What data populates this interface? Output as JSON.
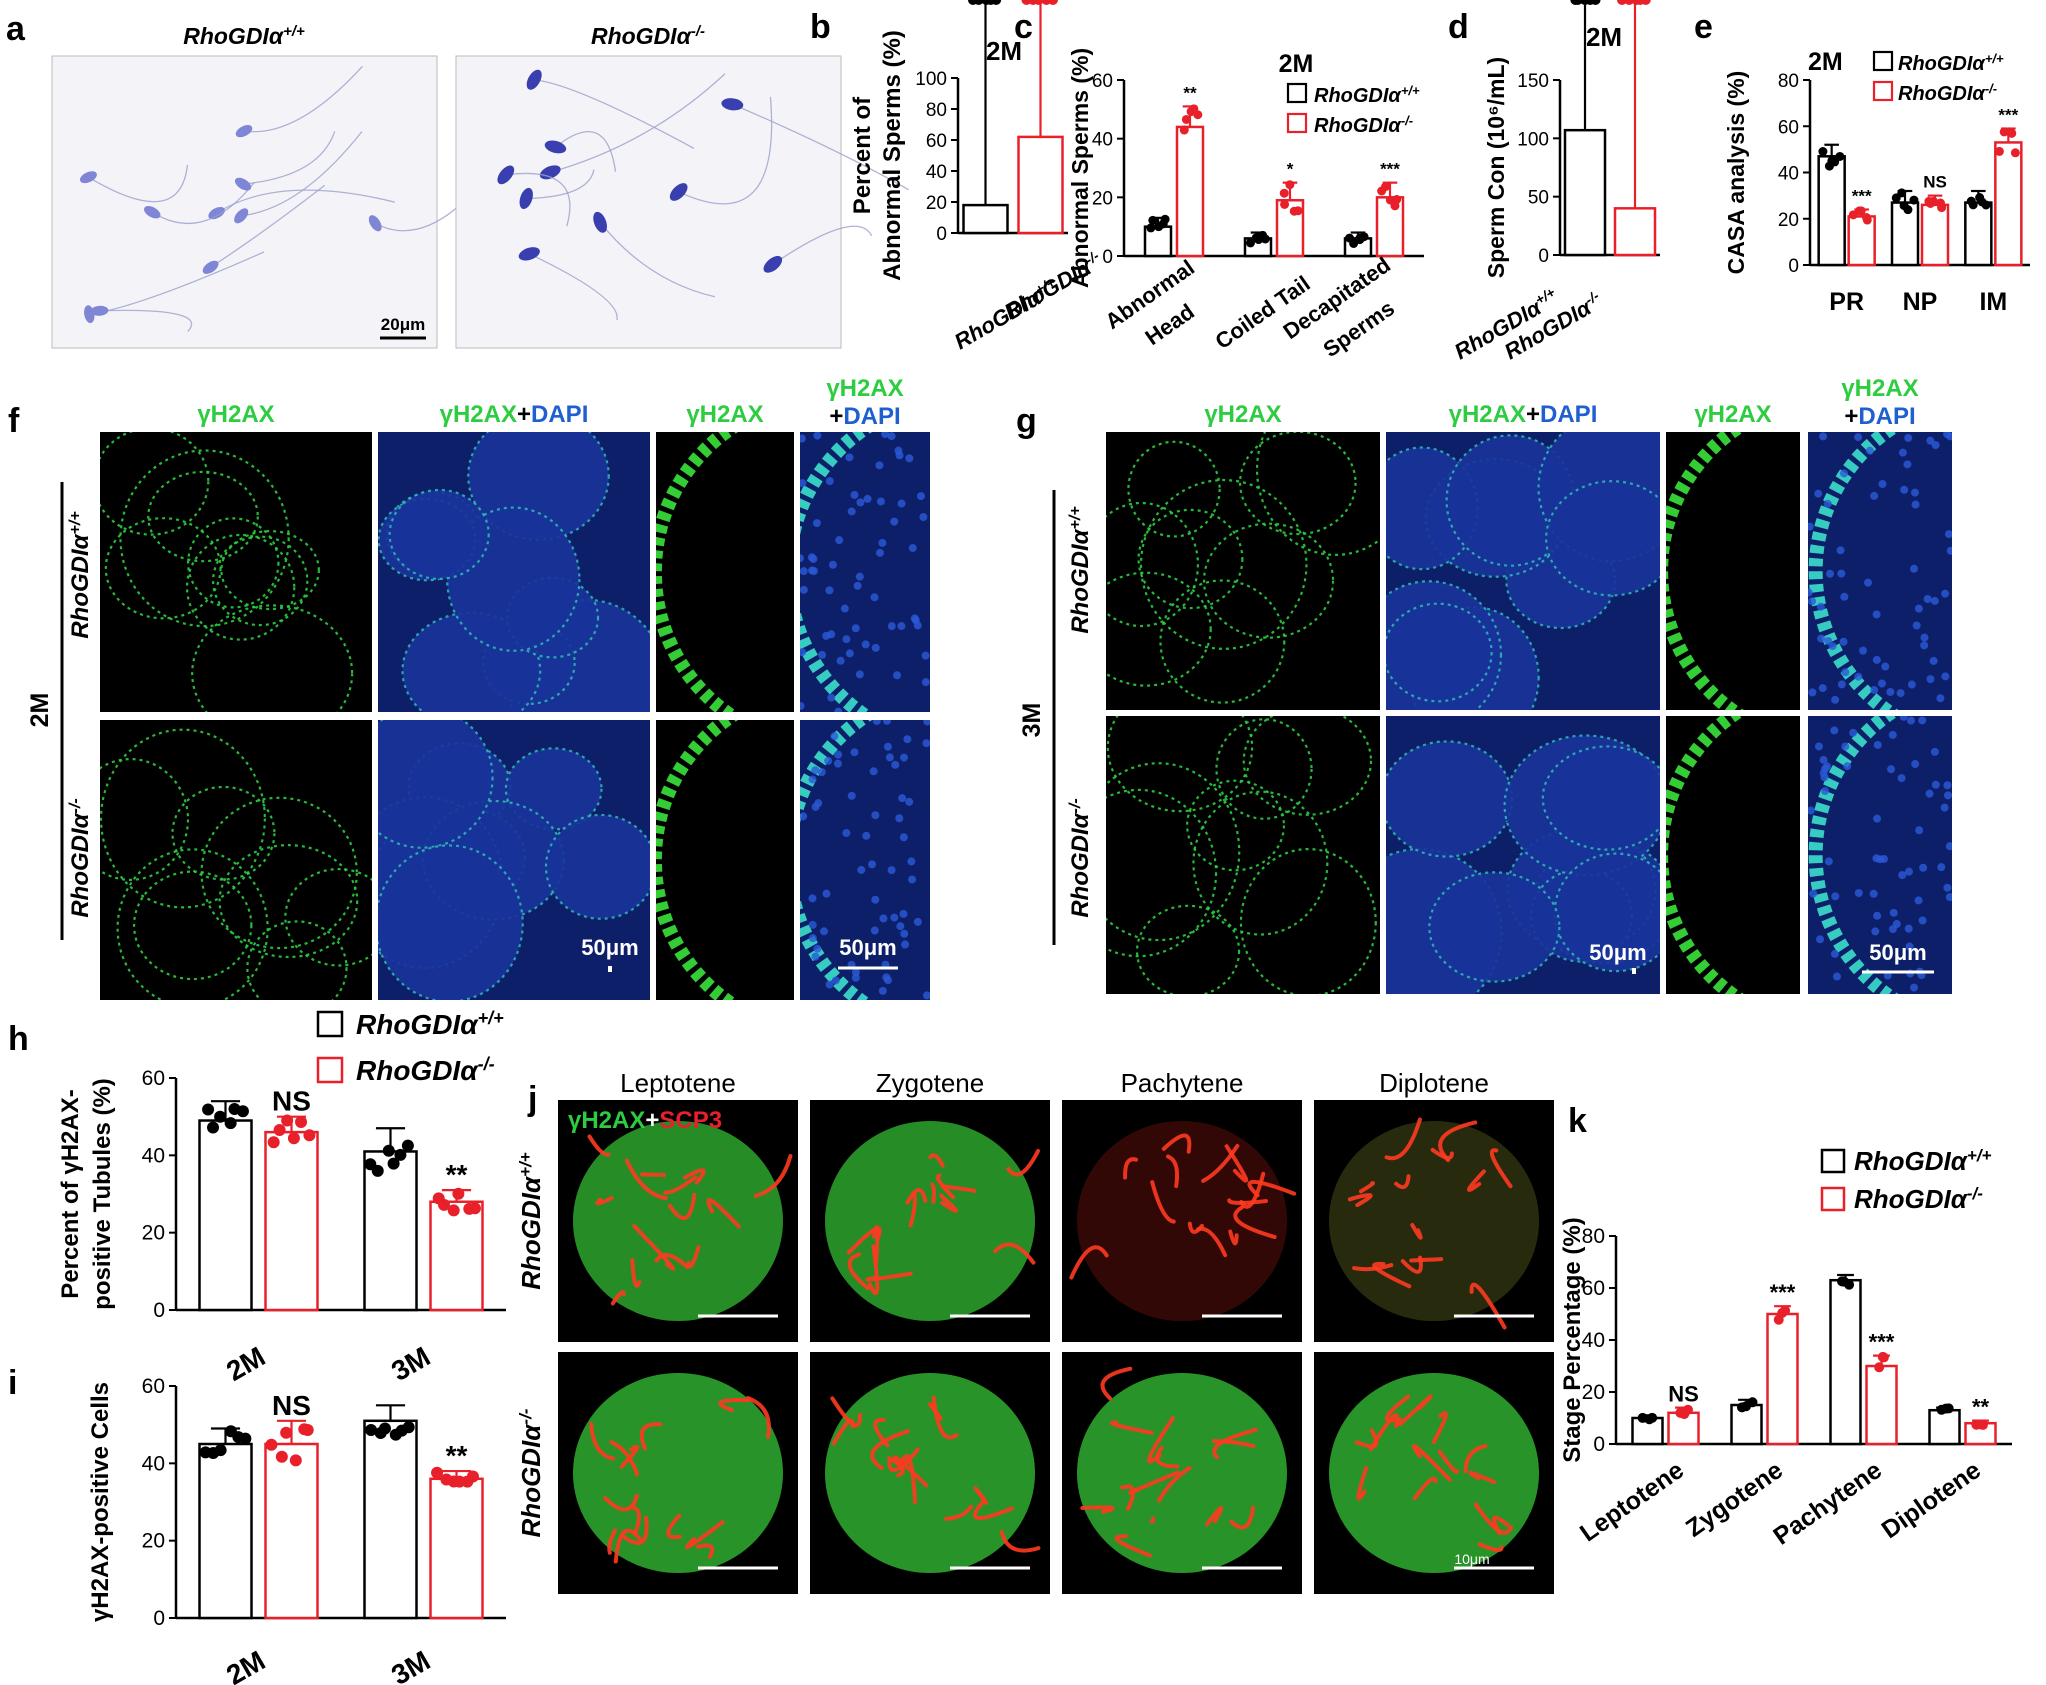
{
  "panel_letters": {
    "a": "a",
    "b": "b",
    "c": "c",
    "d": "d",
    "e": "e",
    "f": "f",
    "g": "g",
    "h": "h",
    "i": "i",
    "j": "j",
    "k": "k"
  },
  "genotypes": {
    "wt": "RhoGDIα",
    "wt_sup": "+/+",
    "ko": "RhoGDIα",
    "ko_sup": "-/-"
  },
  "ages": {
    "two": "2M",
    "three": "3M"
  },
  "microscopy": {
    "a_scale": "20μm",
    "f_cols": [
      "γH2AX",
      "γH2AX",
      "+DAPI",
      "γH2AX",
      "γH2AX",
      "+DAPI"
    ],
    "scale_50": "50μm",
    "j_stages": [
      "Leptotene",
      "Zygotene",
      "Pachytene",
      "Diplotene"
    ],
    "j_stain_a": "γH2AX",
    "j_stain_plus": "+",
    "j_stain_b": "SCP3",
    "j_scale": "10μm"
  },
  "colors": {
    "wt": "#000000",
    "ko": "#e8202a",
    "green": "#2ecc40",
    "blue": "#1f5fd0",
    "red": "#e8202a"
  },
  "chart_data": [
    {
      "panel": "b",
      "type": "bar",
      "title": "2M",
      "ylabel": "Percent of Abnormal Sperms (%)",
      "ylabel_lines": [
        "Percent of",
        "Abnormal Sperms (%)"
      ],
      "categories": [
        "RhoGDIα+/+",
        "RhoGDIα-/-"
      ],
      "values": [
        18,
        62
      ],
      "errors": [
        4,
        14
      ],
      "ylim": [
        0,
        100
      ],
      "yticks": [
        0,
        20,
        40,
        60,
        80,
        100
      ],
      "significance": [
        "",
        "**"
      ]
    },
    {
      "panel": "c",
      "type": "bar",
      "title": "2M",
      "ylabel": "Abnormal Sperms (%)",
      "categories": [
        "Abnormal Head",
        "Coiled Tail",
        "Decapitated Sperms"
      ],
      "xlabels": [
        "Abnormal",
        "Head",
        "Coiled Tail",
        "Decapitated",
        "Sperms"
      ],
      "series": [
        {
          "name": "RhoGDIα+/+",
          "values": [
            10,
            6,
            6
          ],
          "errors": [
            3,
            2,
            2
          ]
        },
        {
          "name": "RhoGDIα-/-",
          "values": [
            44,
            19,
            20
          ],
          "errors": [
            7,
            6,
            5
          ]
        }
      ],
      "ylim": [
        0,
        60
      ],
      "yticks": [
        0,
        20,
        40,
        60
      ],
      "significance": [
        "**",
        "*",
        "***"
      ]
    },
    {
      "panel": "d",
      "type": "bar",
      "title": "2M",
      "ylabel": "Sperm Con (10⁶/mL)",
      "categories": [
        "RhoGDIα+/+",
        "RhoGDIα-/-"
      ],
      "values": [
        107,
        40
      ],
      "errors": [
        16,
        4
      ],
      "ylim": [
        0,
        150
      ],
      "yticks": [
        0,
        50,
        100,
        150
      ],
      "significance": [
        "",
        "***"
      ]
    },
    {
      "panel": "e",
      "type": "bar",
      "title": "2M",
      "ylabel": "CASA analysis (%)",
      "categories": [
        "PR",
        "NP",
        "IM"
      ],
      "series": [
        {
          "name": "RhoGDIα+/+",
          "values": [
            47,
            27,
            27
          ],
          "errors": [
            5,
            5,
            5
          ]
        },
        {
          "name": "RhoGDIα-/-",
          "values": [
            21,
            26,
            53
          ],
          "errors": [
            3,
            4,
            6
          ]
        }
      ],
      "ylim": [
        0,
        80
      ],
      "yticks": [
        0,
        20,
        40,
        60,
        80
      ],
      "significance": [
        "***",
        "NS",
        "***"
      ]
    },
    {
      "panel": "h",
      "type": "bar",
      "ylabel": "Percent of γH2AX-positive Tubules (%)",
      "ylabel_lines": [
        "Percent of γH2AX-",
        "positive Tubules (%)"
      ],
      "categories": [
        "2M",
        "3M"
      ],
      "series": [
        {
          "name": "RhoGDIα+/+",
          "values": [
            49,
            41
          ],
          "errors": [
            5,
            6
          ]
        },
        {
          "name": "RhoGDIα-/-",
          "values": [
            46,
            28
          ],
          "errors": [
            4,
            3
          ]
        }
      ],
      "ylim": [
        0,
        60
      ],
      "yticks": [
        0,
        20,
        40,
        60
      ],
      "significance": [
        "NS",
        "**"
      ]
    },
    {
      "panel": "i",
      "type": "bar",
      "ylabel": "γH2AX-positive Cells",
      "categories": [
        "2M",
        "3M"
      ],
      "series": [
        {
          "name": "RhoGDIα+/+",
          "values": [
            45,
            51
          ],
          "errors": [
            4,
            4
          ]
        },
        {
          "name": "RhoGDIα-/-",
          "values": [
            45,
            36
          ],
          "errors": [
            6,
            2
          ]
        }
      ],
      "ylim": [
        0,
        60
      ],
      "yticks": [
        0,
        20,
        40,
        60
      ],
      "significance": [
        "NS",
        "**"
      ]
    },
    {
      "panel": "k",
      "type": "bar",
      "ylabel": "Stage Percentage (%)",
      "categories": [
        "Leptotene",
        "Zygotene",
        "Pachytene",
        "Diplotene"
      ],
      "series": [
        {
          "name": "RhoGDIα+/+",
          "values": [
            10,
            15,
            63,
            13
          ]
        },
        {
          "name": "RhoGDIα-/-",
          "values": [
            12,
            50,
            30,
            8
          ]
        }
      ],
      "errors": [
        [
          1,
          2,
          2,
          1
        ],
        [
          2,
          3,
          4,
          1
        ]
      ],
      "ylim": [
        0,
        80
      ],
      "yticks": [
        0,
        20,
        40,
        60,
        80
      ],
      "significance": [
        "NS",
        "***",
        "***",
        "**"
      ]
    }
  ]
}
